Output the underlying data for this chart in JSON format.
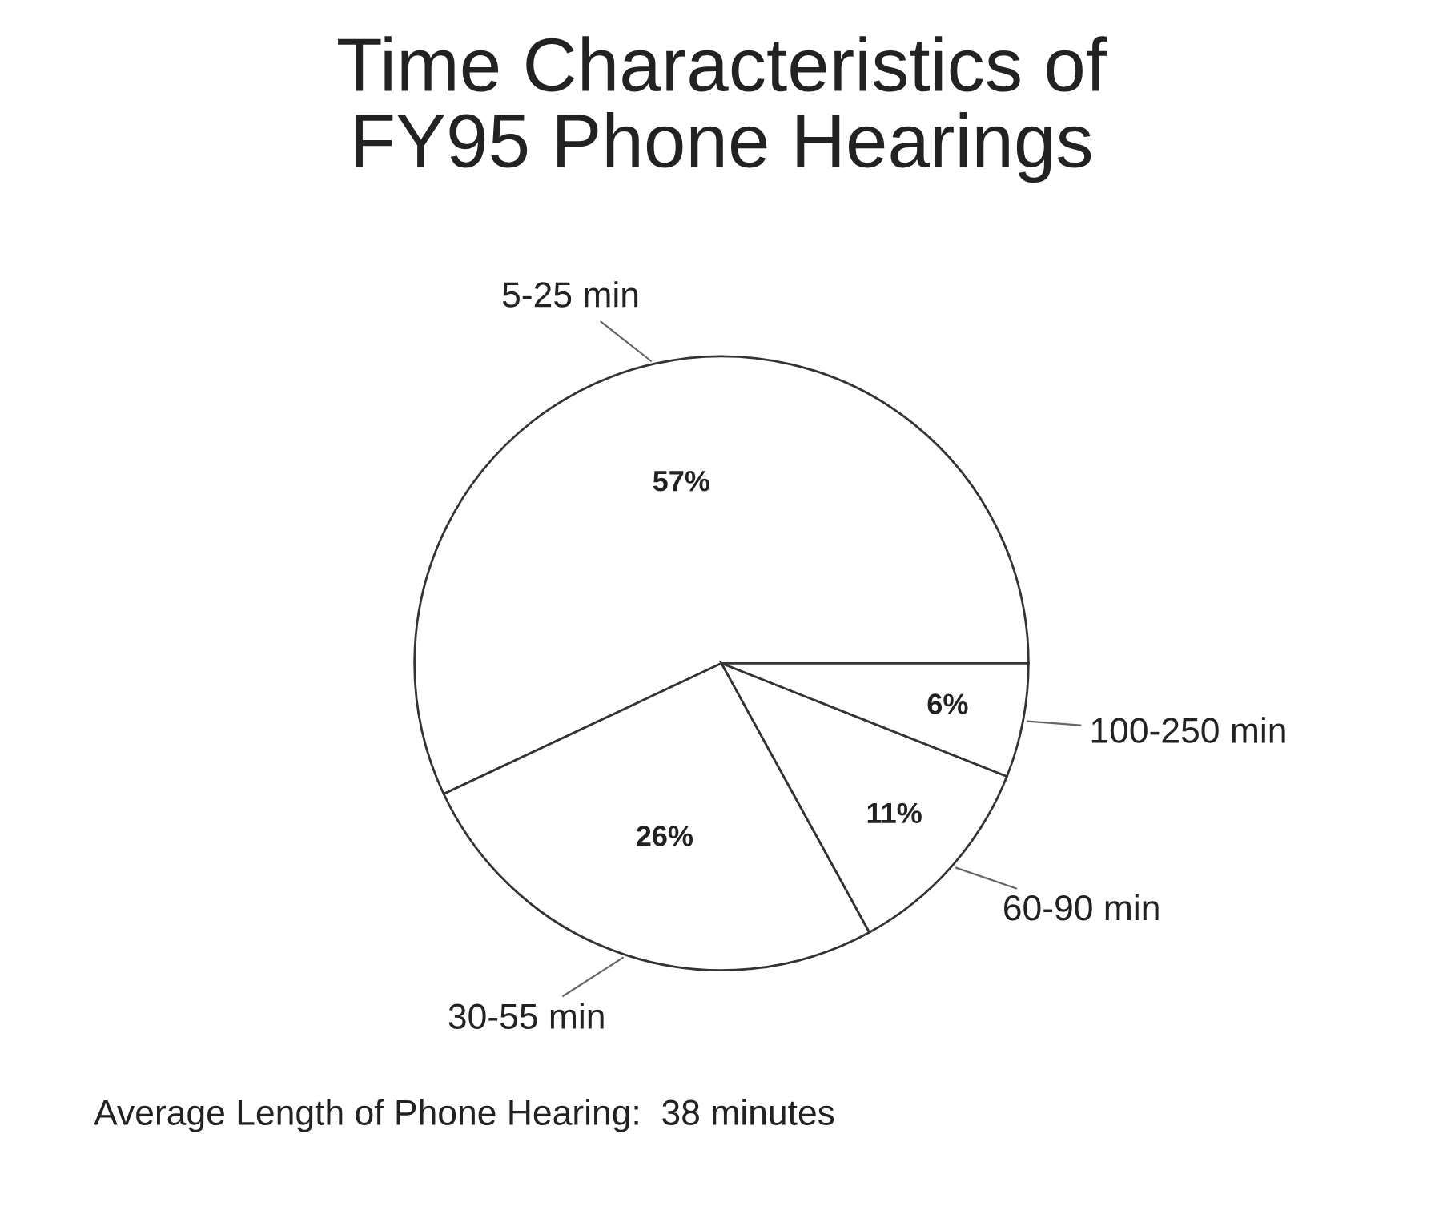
{
  "chart_data": {
    "type": "pie",
    "title": "Time Characteristics of\nFY95 Phone Hearings",
    "categories": [
      "5-25 min",
      "30-55 min",
      "60-90 min",
      "100-250 min"
    ],
    "values": [
      57,
      26,
      11,
      6
    ],
    "colors": [
      "#ffffff",
      "#ffffff",
      "#ffffff",
      "#ffffff"
    ],
    "value_labels": [
      "57%",
      "26%",
      "11%",
      "6%"
    ],
    "annotations": [
      "Average Length of Phone Hearing:  38 minutes"
    ]
  }
}
